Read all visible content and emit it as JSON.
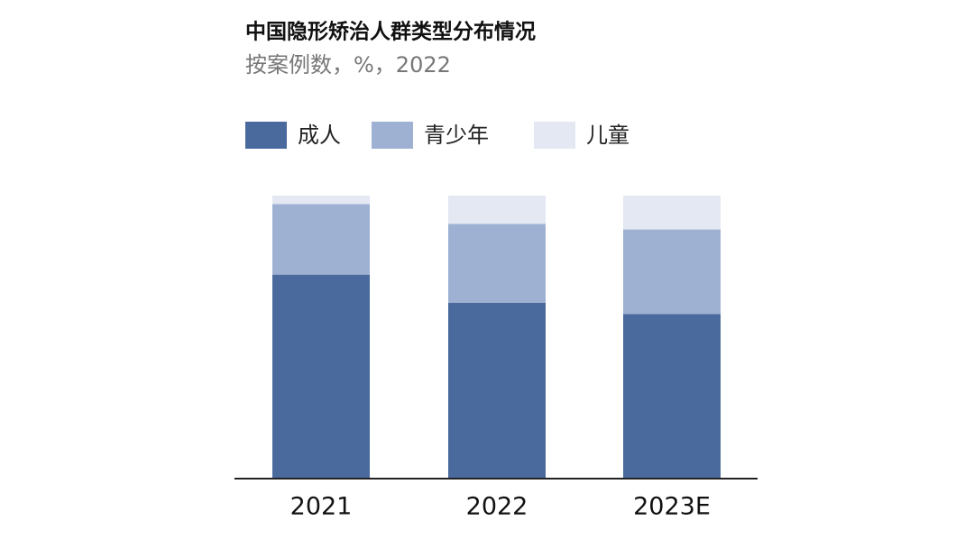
{
  "chart_data": {
    "type": "stacked_bar",
    "title": "中国隐形矫治人群类型分布情况",
    "subtitle": "按案例数，%，2022",
    "categories": [
      "2021",
      "2022",
      "2023E"
    ],
    "series": [
      {
        "name": "成人",
        "color": "#4a6a9e",
        "values": [
          72,
          62,
          58
        ]
      },
      {
        "name": "青少年",
        "color": "#9fb1d2",
        "values": [
          25,
          28,
          30
        ]
      },
      {
        "name": "儿童",
        "color": "#e3e8f2",
        "values": [
          3,
          10,
          12
        ]
      }
    ],
    "ylim": [
      0,
      100
    ]
  }
}
